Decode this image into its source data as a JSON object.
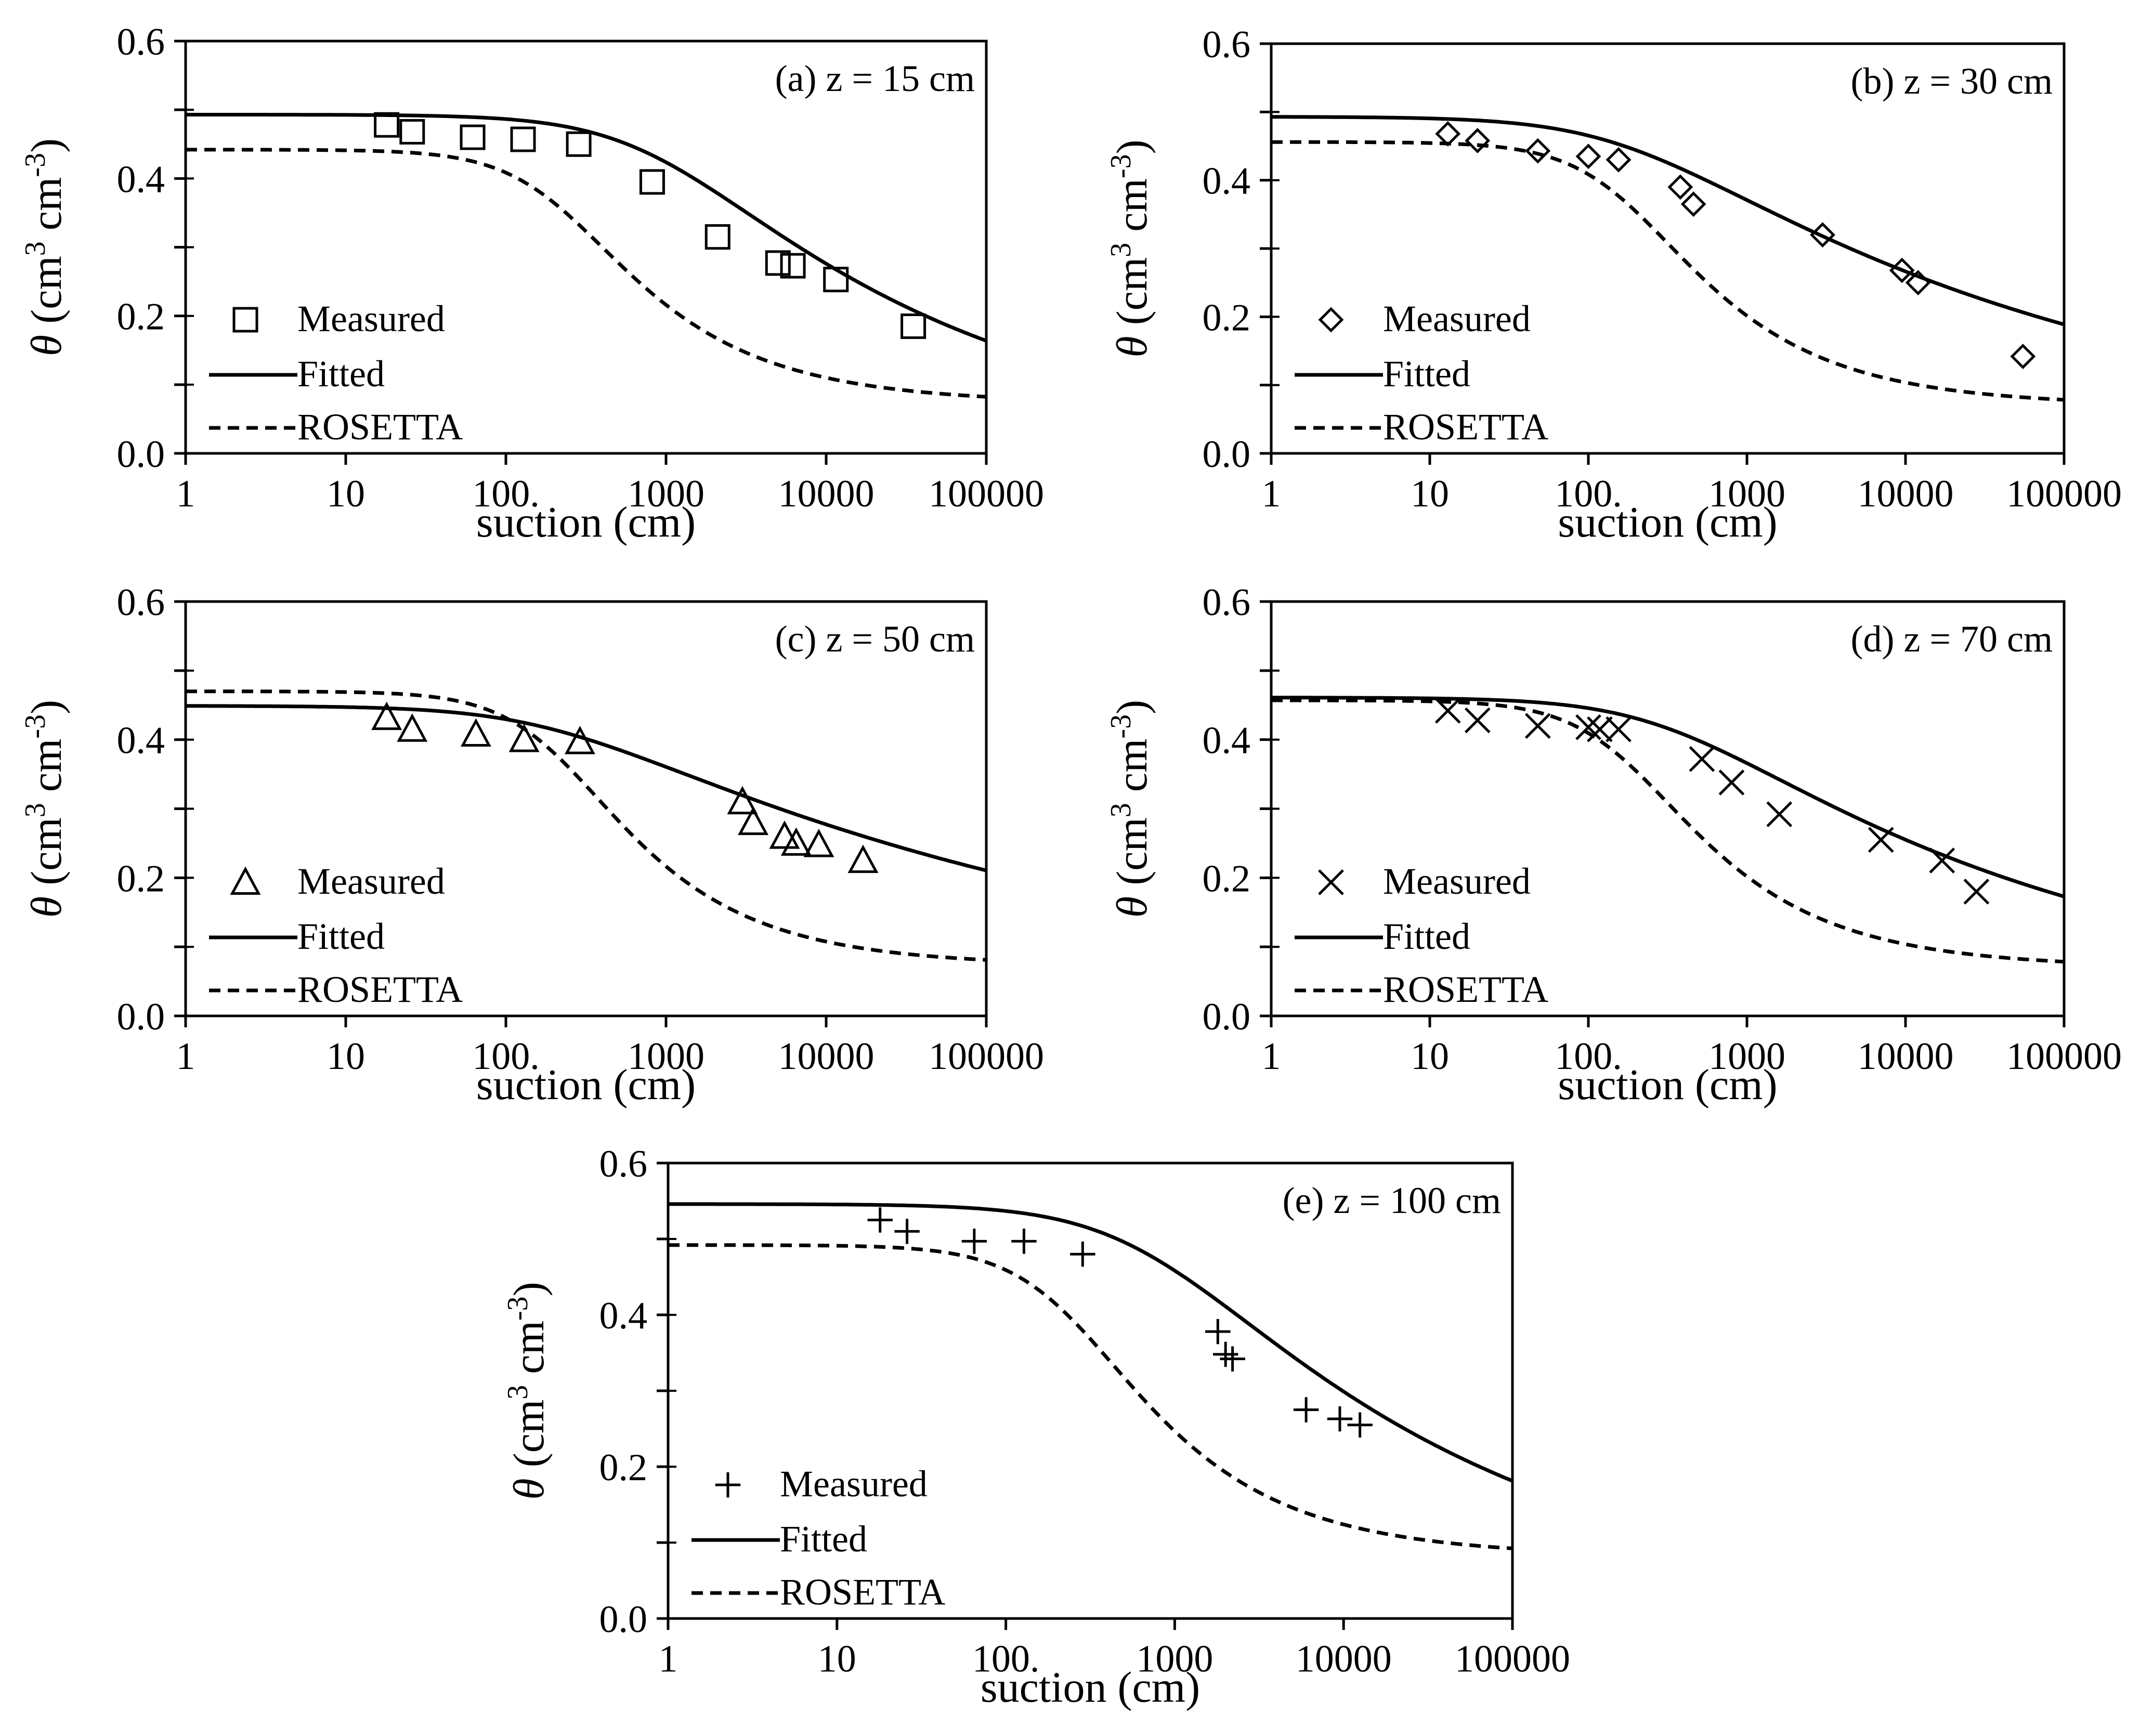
{
  "figure": {
    "x_ticks": [
      "1",
      "10",
      "100.",
      "1000",
      "10000",
      "100000"
    ],
    "y_ticks": [
      "0.0",
      "0.2",
      "0.4",
      "0.6"
    ],
    "xlabel": "suction (cm)",
    "ylabel_theta": "θ",
    "ylabel_units": " (cm",
    "ylabel_sup1": "3",
    "ylabel_mid": " cm",
    "ylabel_sup2": "-3",
    "ylabel_close": ")"
  },
  "chart_data": [
    {
      "type": "scatter",
      "title": "(a) z = 15 cm",
      "xlabel": "suction (cm)",
      "ylabel": "θ (cm3 cm-3)",
      "xscale": "log",
      "xlim": [
        1,
        100000
      ],
      "ylim": [
        0,
        0.6
      ],
      "marker": "square",
      "legend_position": "bottom-left",
      "series": [
        {
          "name": "Measured",
          "x": [
            18,
            26,
            62,
            128,
            285,
            820,
            2100,
            5000,
            6200,
            11500,
            35000
          ],
          "y": [
            0.478,
            0.468,
            0.46,
            0.457,
            0.45,
            0.395,
            0.315,
            0.277,
            0.273,
            0.253,
            0.185
          ]
        },
        {
          "name": "Fitted",
          "style": "solid",
          "theta_r": 0.0,
          "theta_s": 0.493,
          "alpha": 0.0012,
          "n": 1.23
        },
        {
          "name": "ROSETTA",
          "style": "dashed",
          "theta_r": 0.073,
          "theta_s": 0.442,
          "alpha": 0.0046,
          "n": 1.6
        }
      ]
    },
    {
      "type": "scatter",
      "title": "(b) z = 30 cm",
      "xlabel": "suction (cm)",
      "ylabel": "θ (cm3 cm-3)",
      "xscale": "log",
      "xlim": [
        1,
        100000
      ],
      "ylim": [
        0,
        0.6
      ],
      "marker": "diamond",
      "legend_position": "bottom-left",
      "series": [
        {
          "name": "Measured",
          "x": [
            13,
            20,
            48,
            100,
            155,
            380,
            460,
            3000,
            9500,
            12000,
            55000
          ],
          "y": [
            0.468,
            0.458,
            0.443,
            0.435,
            0.43,
            0.39,
            0.365,
            0.32,
            0.268,
            0.25,
            0.142
          ]
        },
        {
          "name": "Fitted",
          "style": "solid",
          "theta_r": 0.0,
          "theta_s": 0.493,
          "alpha": 0.006,
          "n": 1.15
        },
        {
          "name": "ROSETTA",
          "style": "dashed",
          "theta_r": 0.07,
          "theta_s": 0.456,
          "alpha": 0.0058,
          "n": 1.6
        }
      ]
    },
    {
      "type": "scatter",
      "title": "(c) z = 50 cm",
      "xlabel": "suction (cm)",
      "ylabel": "θ (cm3 cm-3)",
      "xscale": "log",
      "xlim": [
        1,
        100000
      ],
      "ylim": [
        0,
        0.6
      ],
      "marker": "triangle",
      "legend_position": "bottom-left",
      "series": [
        {
          "name": "Measured",
          "x": [
            18,
            26,
            65,
            130,
            290,
            3000,
            3500,
            5500,
            6500,
            9000,
            17000
          ],
          "y": [
            0.432,
            0.415,
            0.408,
            0.4,
            0.397,
            0.31,
            0.28,
            0.26,
            0.25,
            0.248,
            0.225
          ]
        },
        {
          "name": "Fitted",
          "style": "solid",
          "theta_r": 0.0,
          "theta_s": 0.449,
          "alpha": 0.0055,
          "n": 1.12
        },
        {
          "name": "ROSETTA",
          "style": "dashed",
          "theta_r": 0.073,
          "theta_s": 0.47,
          "alpha": 0.0048,
          "n": 1.63
        }
      ]
    },
    {
      "type": "scatter",
      "title": "(d) z = 70 cm",
      "xlabel": "suction (cm)",
      "ylabel": "θ (cm3 cm-3)",
      "xscale": "log",
      "xlim": [
        1,
        100000
      ],
      "ylim": [
        0,
        0.6
      ],
      "marker": "x",
      "legend_position": "bottom-left",
      "series": [
        {
          "name": "Measured",
          "x": [
            13,
            20,
            48,
            100,
            118,
            155,
            520,
            800,
            1600,
            7000,
            17000,
            28000
          ],
          "y": [
            0.442,
            0.428,
            0.42,
            0.418,
            0.415,
            0.415,
            0.372,
            0.338,
            0.292,
            0.255,
            0.225,
            0.18
          ]
        },
        {
          "name": "Fitted",
          "style": "solid",
          "theta_r": 0.0,
          "theta_s": 0.461,
          "alpha": 0.0032,
          "n": 1.17
        },
        {
          "name": "ROSETTA",
          "style": "dashed",
          "theta_r": 0.07,
          "theta_s": 0.457,
          "alpha": 0.0058,
          "n": 1.6
        }
      ]
    },
    {
      "type": "scatter",
      "title": "(e) z = 100 cm",
      "xlabel": "suction (cm)",
      "ylabel": "θ (cm3 cm-3)",
      "xscale": "log",
      "xlim": [
        1,
        100000
      ],
      "ylim": [
        0,
        0.6
      ],
      "marker": "plus",
      "legend_position": "bottom-left",
      "series": [
        {
          "name": "Measured",
          "x": [
            18,
            26,
            65,
            128,
            285,
            1800,
            2000,
            2200,
            6000,
            9500,
            12500
          ],
          "y": [
            0.525,
            0.51,
            0.497,
            0.497,
            0.48,
            0.378,
            0.348,
            0.342,
            0.275,
            0.263,
            0.255
          ]
        },
        {
          "name": "Fitted",
          "style": "solid",
          "theta_r": 0.0,
          "theta_s": 0.546,
          "alpha": 0.0015,
          "n": 1.22
        },
        {
          "name": "ROSETTA",
          "style": "dashed",
          "theta_r": 0.082,
          "theta_s": 0.492,
          "alpha": 0.0042,
          "n": 1.61
        }
      ]
    }
  ]
}
